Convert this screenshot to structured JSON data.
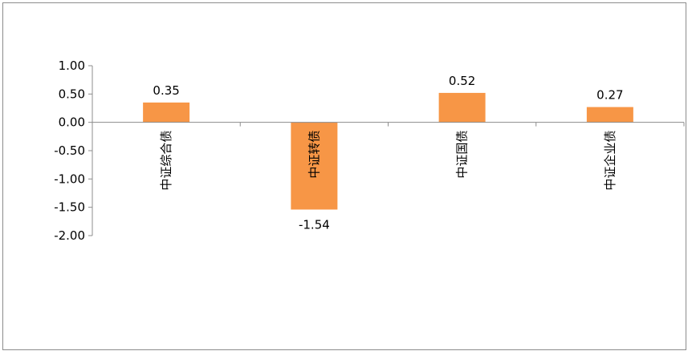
{
  "chart_data": {
    "type": "bar",
    "categories": [
      "中证综合债",
      "中证转债",
      "中证国债",
      "中证企业债"
    ],
    "values": [
      0.35,
      -1.54,
      0.52,
      0.27
    ],
    "data_labels": [
      "0.35",
      "-1.54",
      "0.52",
      "0.27"
    ],
    "ylim": [
      -2.0,
      1.0
    ],
    "yticks": [
      1.0,
      0.5,
      0.0,
      -0.5,
      -1.0,
      -1.5,
      -2.0
    ],
    "ytick_labels": [
      "1.00",
      "0.50",
      "0.00",
      "-0.50",
      "-1.00",
      "-1.50",
      "-2.00"
    ],
    "bar_color": "#F79646",
    "axis_color": "#8c8c8c",
    "grid": false,
    "legend": false,
    "title": "",
    "xlabel": "",
    "ylabel": ""
  }
}
